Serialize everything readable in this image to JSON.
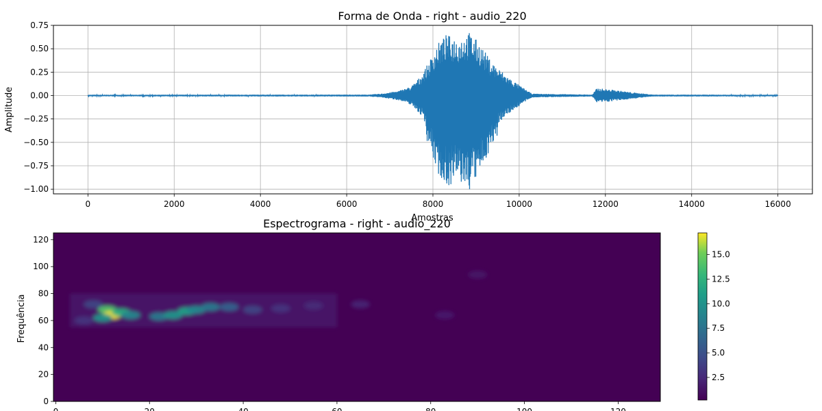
{
  "chart_data": [
    {
      "type": "line",
      "title": "Forma de Onda - right - audio_220",
      "xlabel": "Amostras",
      "ylabel": "Amplitude",
      "xlim": [
        -800,
        16800
      ],
      "ylim": [
        -1.05,
        0.75
      ],
      "xticks": [
        "0",
        "2000",
        "4000",
        "6000",
        "8000",
        "10000",
        "12000",
        "14000",
        "16000"
      ],
      "yticks": [
        "0.75",
        "0.50",
        "0.25",
        "0.00",
        "−0.25",
        "−0.50",
        "−0.75",
        "−1.00"
      ],
      "grid": true,
      "series_color": "#1f77b4",
      "envelope": [
        {
          "x": 0,
          "amp": 0.008
        },
        {
          "x": 6500,
          "amp": 0.01
        },
        {
          "x": 6800,
          "amp": 0.02
        },
        {
          "x": 7200,
          "amp": 0.05
        },
        {
          "x": 7500,
          "amp": 0.1
        },
        {
          "x": 7700,
          "amp": 0.2
        },
        {
          "x": 7900,
          "amp": 0.35
        },
        {
          "x": 8100,
          "amp": 0.55
        },
        {
          "x": 8300,
          "amp": 0.65
        },
        {
          "x": 8600,
          "amp": 0.62
        },
        {
          "x": 8850,
          "amp": 0.68
        },
        {
          "x": 9100,
          "amp": 0.55
        },
        {
          "x": 9300,
          "amp": 0.4
        },
        {
          "x": 9500,
          "amp": 0.3
        },
        {
          "x": 9800,
          "amp": 0.18
        },
        {
          "x": 10100,
          "amp": 0.08
        },
        {
          "x": 10300,
          "amp": 0.02
        },
        {
          "x": 11700,
          "amp": 0.01
        },
        {
          "x": 11800,
          "amp": 0.08
        },
        {
          "x": 12200,
          "amp": 0.06
        },
        {
          "x": 12700,
          "amp": 0.03
        },
        {
          "x": 13100,
          "amp": 0.01
        },
        {
          "x": 16000,
          "amp": 0.008
        }
      ]
    },
    {
      "type": "heatmap",
      "title": "Espectrograma - right - audio_220",
      "ylabel": "Frequência",
      "xlim": [
        -0.5,
        129
      ],
      "ylim": [
        0,
        125
      ],
      "xticks": [
        "0",
        "20",
        "40",
        "60",
        "80",
        "100",
        "120"
      ],
      "yticks": [
        "0",
        "20",
        "40",
        "60",
        "80",
        "100",
        "120"
      ],
      "colorbar": {
        "min": 0.2,
        "max": 17.2,
        "ticks": [
          "2.5",
          "5.0",
          "7.5",
          "10.0",
          "12.5",
          "15.0"
        ],
        "colormap": "viridis"
      },
      "features": [
        {
          "x": 11,
          "y": 68,
          "value": 14
        },
        {
          "x": 12,
          "y": 64,
          "value": 17
        },
        {
          "x": 14,
          "y": 66,
          "value": 12
        },
        {
          "x": 10,
          "y": 62,
          "value": 10
        },
        {
          "x": 16,
          "y": 64,
          "value": 9
        },
        {
          "x": 22,
          "y": 63,
          "value": 8
        },
        {
          "x": 25,
          "y": 64,
          "value": 10
        },
        {
          "x": 28,
          "y": 67,
          "value": 11
        },
        {
          "x": 30,
          "y": 68,
          "value": 9
        },
        {
          "x": 33,
          "y": 70,
          "value": 8
        },
        {
          "x": 37,
          "y": 70,
          "value": 6
        },
        {
          "x": 42,
          "y": 68,
          "value": 4
        },
        {
          "x": 48,
          "y": 69,
          "value": 3
        },
        {
          "x": 55,
          "y": 71,
          "value": 2.5
        },
        {
          "x": 65,
          "y": 72,
          "value": 2
        },
        {
          "x": 83,
          "y": 64,
          "value": 1.5
        },
        {
          "x": 90,
          "y": 94,
          "value": 1.2
        },
        {
          "x": 8,
          "y": 72,
          "value": 4
        },
        {
          "x": 6,
          "y": 60,
          "value": 3
        }
      ]
    }
  ]
}
